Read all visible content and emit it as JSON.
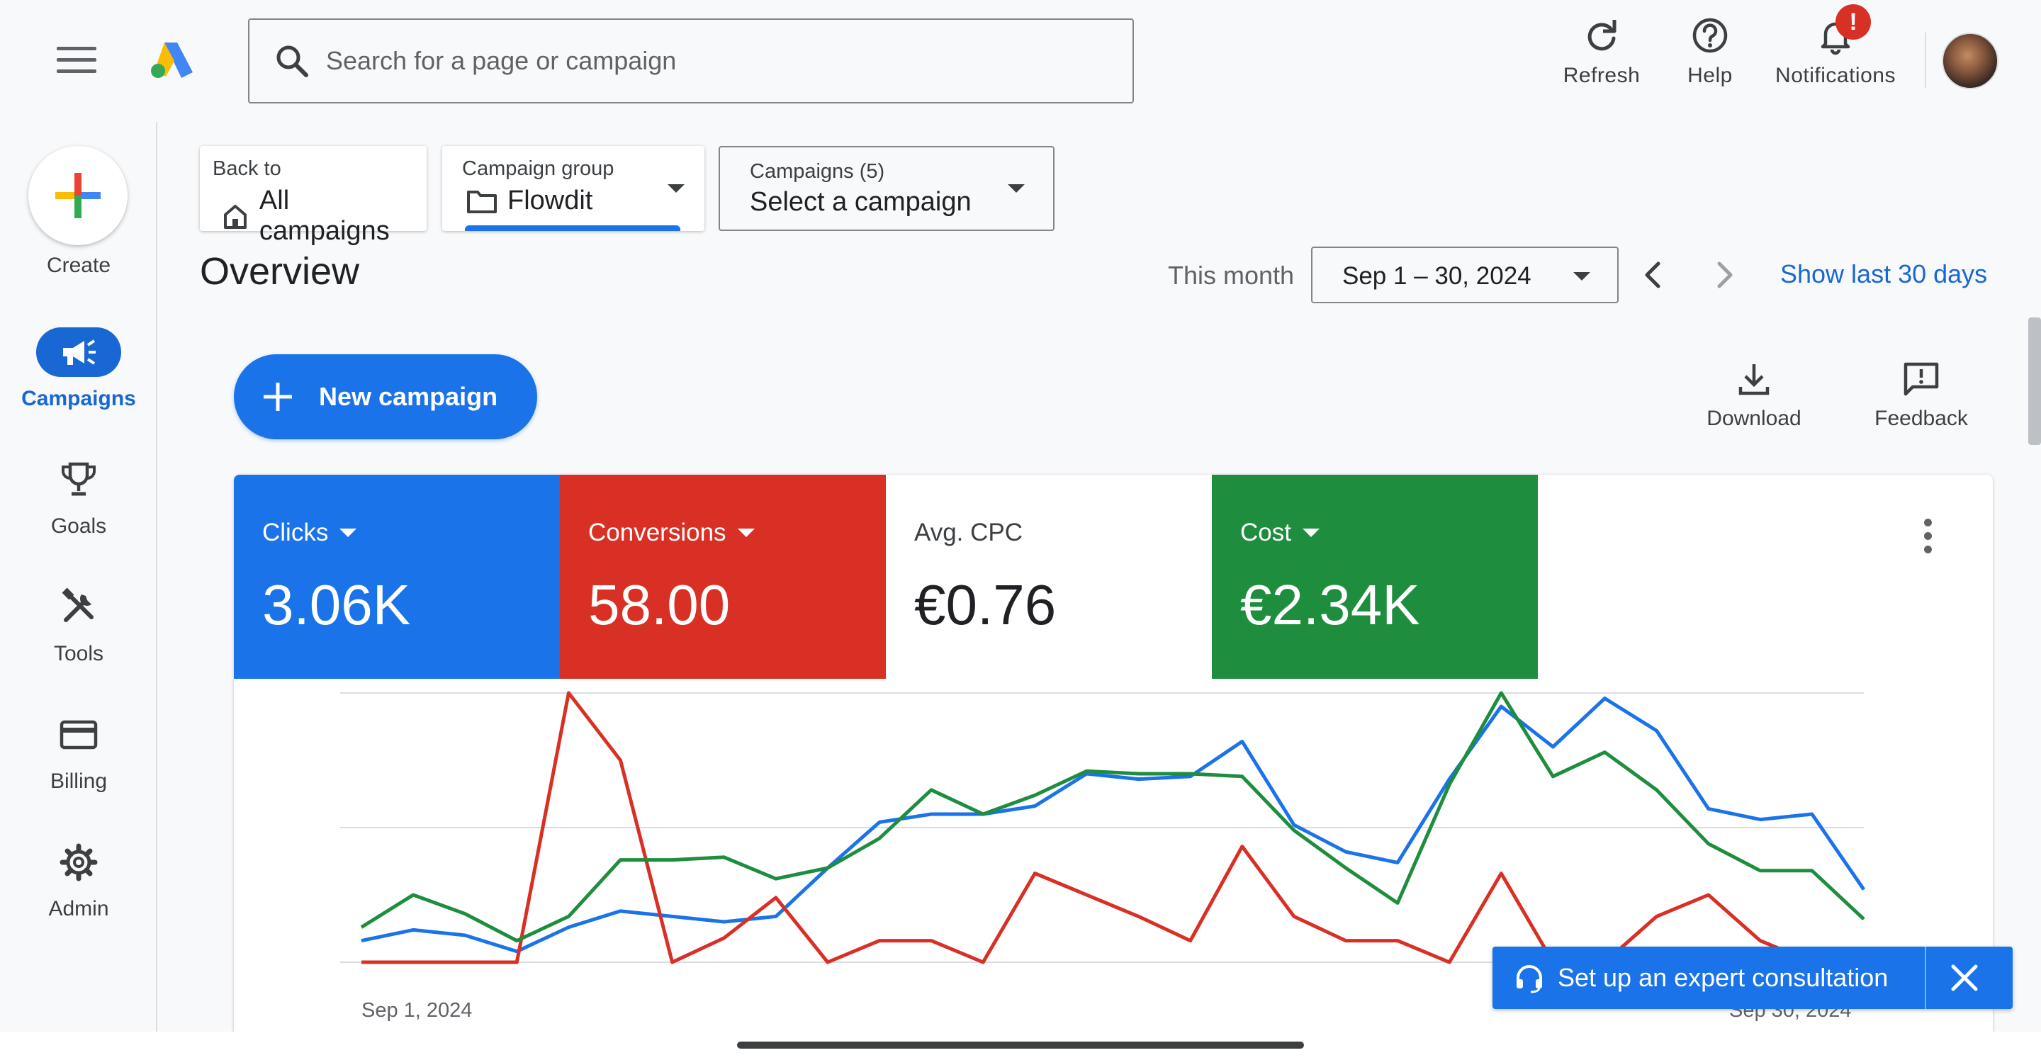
{
  "header": {
    "search_placeholder": "Search for a page or campaign",
    "refresh_label": "Refresh",
    "help_label": "Help",
    "notifications_label": "Notifications",
    "notifications_badge": "!"
  },
  "rail": {
    "create_label": "Create",
    "items": [
      {
        "label": "Campaigns",
        "icon": "megaphone-icon",
        "active": true
      },
      {
        "label": "Goals",
        "icon": "trophy-icon",
        "active": false
      },
      {
        "label": "Tools",
        "icon": "tools-icon",
        "active": false
      },
      {
        "label": "Billing",
        "icon": "credit-card-icon",
        "active": false
      },
      {
        "label": "Admin",
        "icon": "gear-icon",
        "active": false
      }
    ]
  },
  "selectors": {
    "back_small": "Back to",
    "back_value": "All campaigns",
    "group_small": "Campaign group",
    "group_value": "Flowdit",
    "campaigns_small": "Campaigns (5)",
    "campaigns_value": "Select a campaign"
  },
  "overview": {
    "title": "Overview",
    "period_label": "This month",
    "date_range": "Sep 1 – 30, 2024",
    "show_last": "Show last 30 days"
  },
  "actions": {
    "new_campaign": "New campaign",
    "download": "Download",
    "feedback": "Feedback"
  },
  "metrics": [
    {
      "label": "Clicks",
      "value": "3.06K",
      "color": "#1a73e8",
      "dropdown": true
    },
    {
      "label": "Conversions",
      "value": "58.00",
      "color": "#d93025",
      "dropdown": true
    },
    {
      "label": "Avg. CPC",
      "value": "€0.76",
      "color": "#ffffff",
      "dropdown": false
    },
    {
      "label": "Cost",
      "value": "€2.34K",
      "color": "#1e8e3e",
      "dropdown": true
    }
  ],
  "chart_data": {
    "type": "line",
    "x_start_label": "Sep 1, 2024",
    "x_end_label": "Sep 30, 2024",
    "x": [
      1,
      2,
      3,
      4,
      5,
      6,
      7,
      8,
      9,
      10,
      11,
      12,
      13,
      14,
      15,
      16,
      17,
      18,
      19,
      20,
      21,
      22,
      23,
      24,
      25,
      26,
      27,
      28,
      29,
      30
    ],
    "grid": true,
    "series": [
      {
        "color": "#1a73e8",
        "values": [
          0.08,
          0.12,
          0.1,
          0.04,
          0.13,
          0.19,
          0.17,
          0.15,
          0.17,
          0.35,
          0.52,
          0.55,
          0.55,
          0.58,
          0.7,
          0.68,
          0.69,
          0.82,
          0.51,
          0.41,
          0.37,
          0.68,
          0.95,
          0.8,
          0.98,
          0.86,
          0.57,
          0.53,
          0.55,
          0.27
        ]
      },
      {
        "color": "#d93025",
        "values": [
          0.0,
          0.0,
          0.0,
          0.0,
          1.0,
          0.75,
          0.0,
          0.09,
          0.24,
          0.0,
          0.08,
          0.08,
          0.0,
          0.33,
          0.25,
          0.17,
          0.08,
          0.43,
          0.17,
          0.08,
          0.08,
          0.0,
          0.33,
          0.0,
          0.0,
          0.17,
          0.25,
          0.08,
          0.0,
          0.0
        ]
      },
      {
        "color": "#1e8e3e",
        "values": [
          0.13,
          0.25,
          0.18,
          0.08,
          0.17,
          0.38,
          0.38,
          0.39,
          0.31,
          0.35,
          0.46,
          0.64,
          0.55,
          0.62,
          0.71,
          0.7,
          0.7,
          0.69,
          0.49,
          0.35,
          0.22,
          0.66,
          1.0,
          0.69,
          0.78,
          0.64,
          0.44,
          0.34,
          0.34,
          0.16
        ]
      }
    ]
  },
  "consultation": {
    "label": "Set up an expert consultation"
  }
}
